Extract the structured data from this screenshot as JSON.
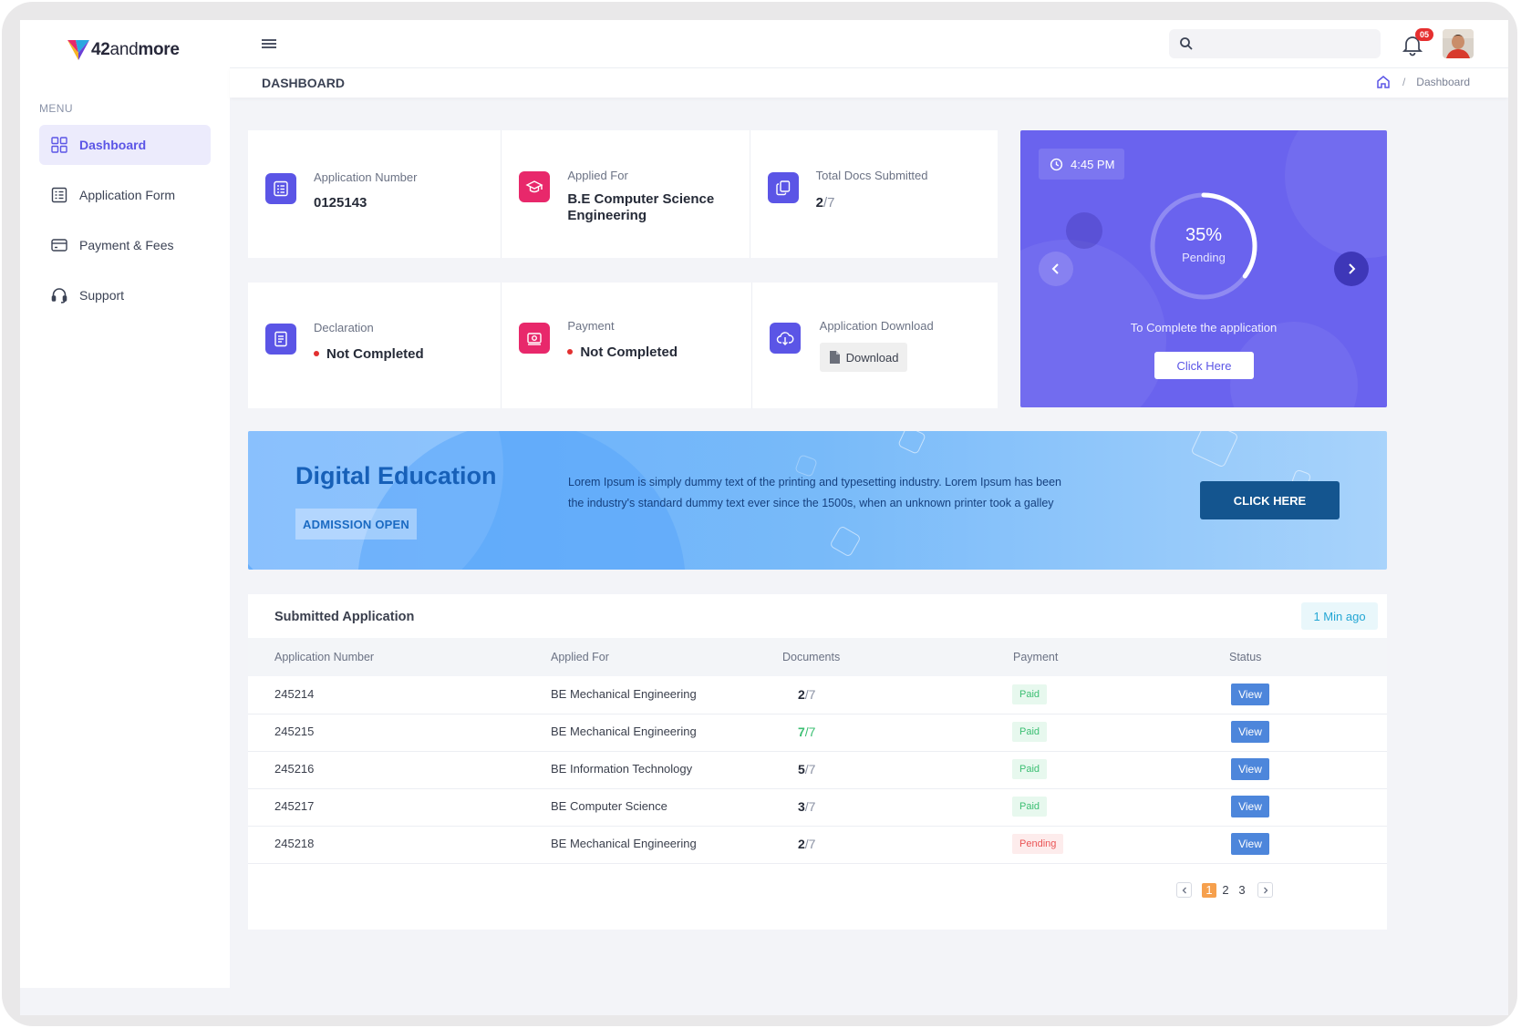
{
  "app": {
    "brand_bold": "42",
    "brand_mid": "and",
    "brand_tail": "more"
  },
  "sidebar": {
    "menu_label": "MENU",
    "items": [
      {
        "label": "Dashboard",
        "icon": "grid-icon",
        "active": true
      },
      {
        "label": "Application Form",
        "icon": "form-icon",
        "active": false
      },
      {
        "label": "Payment & Fees",
        "icon": "card-icon",
        "active": false
      },
      {
        "label": "Support",
        "icon": "headset-icon",
        "active": false
      }
    ]
  },
  "header": {
    "search_placeholder": "",
    "notification_count": "05",
    "page_title": "DASHBOARD",
    "breadcrumb": {
      "separator": "/",
      "current": "Dashboard"
    }
  },
  "info_cards": {
    "application_number": {
      "label": "Application Number",
      "value": "0125143"
    },
    "applied_for": {
      "label": "Applied For",
      "value": "B.E Computer Science Engineering"
    },
    "total_docs": {
      "label": "Total Docs Submitted",
      "submitted": "2",
      "total": "/7"
    },
    "declaration": {
      "label": "Declaration",
      "status": "Not Completed"
    },
    "payment": {
      "label": "Payment",
      "status": "Not Completed"
    },
    "app_download": {
      "label": "Application Download",
      "button": "Download"
    }
  },
  "progress": {
    "time": "4:45 PM",
    "percent_label": "35%",
    "percent_value": 0.35,
    "status": "Pending",
    "caption": "To Complete the application",
    "button": "Click Here"
  },
  "banner": {
    "title": "Digital Education",
    "tag": "ADMISSION OPEN",
    "text": "Lorem Ipsum is simply dummy text of the printing and typesetting industry. Lorem Ipsum has been the industry's standard dummy text ever since the 1500s, when an unknown printer took a galley",
    "button": "CLICK HERE"
  },
  "table": {
    "title": "Submitted Application",
    "updated": "1 Min ago",
    "columns": [
      "Application Number",
      "Applied For",
      "Documents",
      "Payment",
      "Status"
    ],
    "rows": [
      {
        "number": "245214",
        "applied_for": "BE Mechanical Engineering",
        "docs": "2",
        "docs_total": "/7",
        "payment": "Paid",
        "status": "View"
      },
      {
        "number": "245215",
        "applied_for": "BE Mechanical Engineering",
        "docs": "7",
        "docs_total": "/7",
        "payment": "Paid",
        "status": "View"
      },
      {
        "number": "245216",
        "applied_for": "BE Information Technology",
        "docs": "5",
        "docs_total": "/7",
        "payment": "Paid",
        "status": "View"
      },
      {
        "number": "245217",
        "applied_for": "BE Computer Science",
        "docs": "3",
        "docs_total": "/7",
        "payment": "Paid",
        "status": "View"
      },
      {
        "number": "245218",
        "applied_for": "BE Mechanical Engineering",
        "docs": "2",
        "docs_total": "/7",
        "payment": "Pending",
        "status": "View"
      }
    ],
    "pagination": {
      "pages": [
        "1",
        "2",
        "3"
      ],
      "current": "1"
    }
  },
  "colors": {
    "accent": "#5b55e6",
    "progress_bg": "#6a63ee",
    "pink": "#e8286b",
    "banner_button": "#14558f",
    "view_button": "#4d86db",
    "paid": "#3cbf73",
    "pending": "#ea5455",
    "pager_active": "#f6a04d"
  }
}
